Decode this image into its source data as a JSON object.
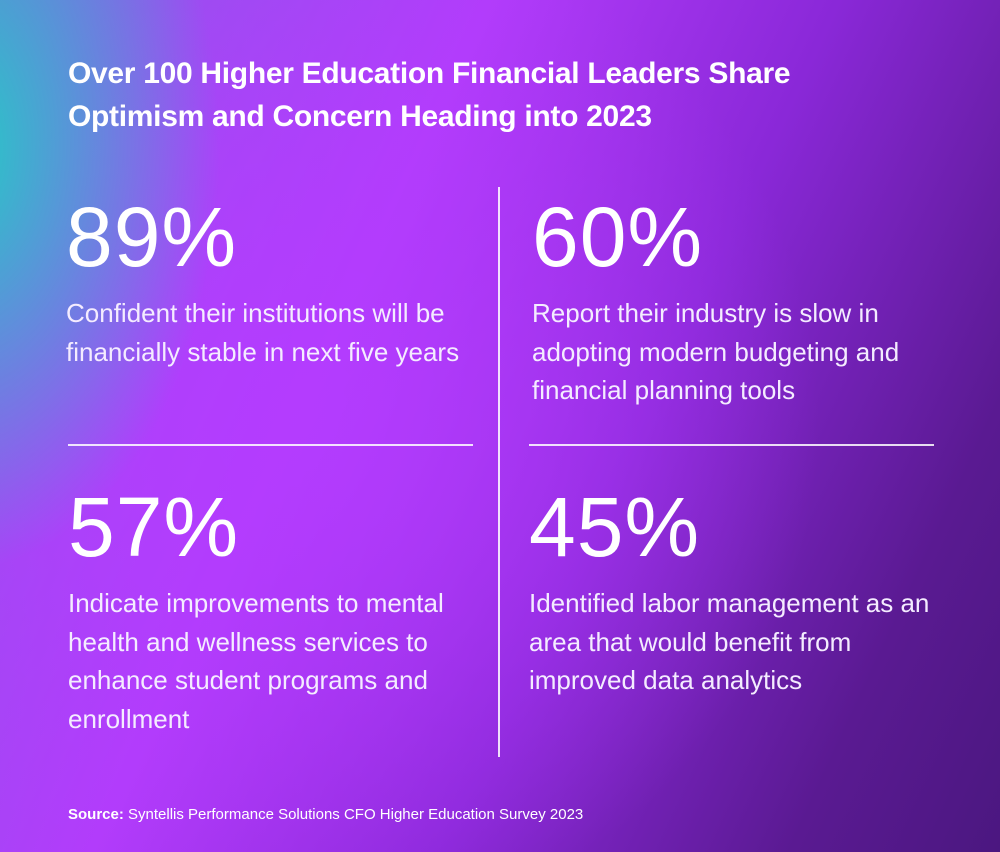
{
  "title": {
    "line1": "Over 100 Higher Education Financial Leaders Share",
    "line2": "Optimism and Concern Heading into 2023"
  },
  "stats": [
    {
      "value": "89%",
      "description": "Confident their institutions will be financially stable in next five years"
    },
    {
      "value": "60%",
      "description": "Report their industry is slow in adopting modern budgeting and financial planning tools"
    },
    {
      "value": "57%",
      "description": "Indicate improvements to mental health and wellness services to enhance student programs and enrollment"
    },
    {
      "value": "45%",
      "description": "Identified labor management as an area that would benefit from improved data analytics"
    }
  ],
  "source": {
    "label": "Source:",
    "text": " Syntellis Performance Solutions CFO Higher Education Survey 2023"
  },
  "colors": {
    "teal": "#1ed2c3",
    "purple": "#b23cfb",
    "dark_purple": "#4b1780"
  }
}
